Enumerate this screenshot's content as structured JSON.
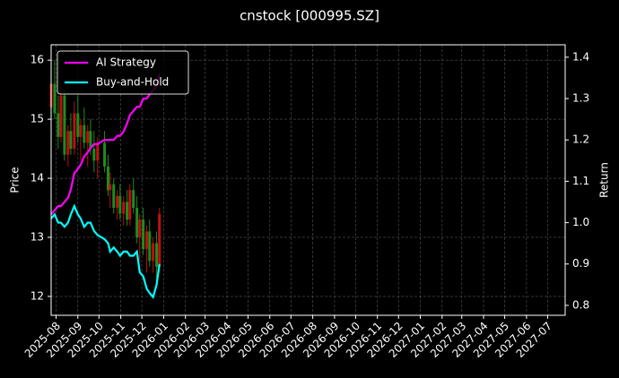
{
  "chart_data": {
    "type": "candlestick",
    "title": "cnstock [000995.SZ]",
    "ylabel": "Price",
    "y2label": "Return",
    "x": [
      "2025-07-25",
      "2025-07-30",
      "2025-08-04",
      "2025-08-08",
      "2025-08-13",
      "2025-08-18",
      "2025-08-22",
      "2025-08-27",
      "2025-09-01",
      "2025-09-05",
      "2025-09-10",
      "2025-09-15",
      "2025-09-19",
      "2025-09-24",
      "2025-09-29",
      "2025-10-09",
      "2025-10-14",
      "2025-10-17",
      "2025-10-22",
      "2025-10-27",
      "2025-10-31",
      "2025-11-05",
      "2025-11-10",
      "2025-11-14",
      "2025-11-19",
      "2025-11-24",
      "2025-11-28",
      "2025-12-03",
      "2025-12-08",
      "2025-12-12",
      "2025-12-17",
      "2025-12-22",
      "2025-12-26"
    ],
    "open": [
      15.2,
      15.6,
      15.1,
      14.7,
      15.4,
      14.4,
      14.8,
      14.5,
      15.1,
      14.7,
      14.9,
      14.6,
      14.8,
      14.5,
      14.3,
      14.6,
      14.2,
      13.8,
      13.9,
      13.5,
      13.7,
      13.4,
      13.6,
      13.3,
      13.8,
      13.5,
      13.0,
      13.3,
      12.8,
      13.1,
      12.6,
      12.9,
      12.5
    ],
    "high": [
      15.9,
      16.0,
      15.4,
      15.6,
      15.5,
      14.9,
      15.1,
      15.3,
      15.4,
      15.0,
      15.2,
      14.9,
      15.0,
      14.8,
      14.7,
      14.8,
      14.4,
      14.1,
      14.0,
      13.8,
      13.9,
      13.7,
      13.8,
      13.9,
      14.0,
      13.7,
      13.4,
      13.5,
      13.2,
      13.3,
      13.0,
      13.1,
      13.5
    ],
    "low": [
      14.8,
      15.0,
      14.5,
      14.6,
      14.3,
      14.2,
      14.4,
      14.4,
      14.6,
      14.3,
      14.5,
      14.2,
      14.4,
      14.1,
      14.0,
      14.1,
      13.7,
      13.5,
      13.4,
      13.3,
      13.3,
      13.2,
      13.2,
      13.2,
      13.4,
      12.9,
      12.6,
      12.7,
      12.4,
      12.5,
      12.4,
      12.3,
      12.4
    ],
    "close": [
      15.6,
      15.1,
      14.7,
      15.4,
      14.4,
      14.8,
      14.5,
      15.1,
      14.7,
      14.9,
      14.6,
      14.8,
      14.5,
      14.3,
      14.6,
      14.2,
      13.8,
      13.9,
      13.5,
      13.7,
      13.4,
      13.6,
      13.3,
      13.8,
      13.5,
      13.0,
      13.3,
      12.8,
      13.1,
      12.6,
      12.9,
      12.5,
      13.4
    ],
    "up_color": "#c01010",
    "down_color": "#1e8c1e",
    "series": [
      {
        "name": "AI Strategy",
        "color": "#ff00ff",
        "axis": "y2",
        "values": [
          1.02,
          1.03,
          1.04,
          1.04,
          1.05,
          1.06,
          1.08,
          1.12,
          1.13,
          1.14,
          1.16,
          1.17,
          1.18,
          1.19,
          1.19,
          1.2,
          1.2,
          1.2,
          1.2,
          1.21,
          1.21,
          1.22,
          1.24,
          1.26,
          1.27,
          1.28,
          1.28,
          1.3,
          1.3,
          1.31,
          1.32,
          1.33,
          1.36
        ]
      },
      {
        "name": "Buy-and-Hold",
        "color": "#00ffff",
        "axis": "y2",
        "values": [
          1.01,
          1.02,
          1.0,
          1.0,
          0.99,
          1.0,
          1.02,
          1.04,
          1.02,
          1.01,
          0.99,
          1.0,
          1.0,
          0.98,
          0.97,
          0.96,
          0.95,
          0.93,
          0.94,
          0.93,
          0.92,
          0.93,
          0.93,
          0.92,
          0.92,
          0.93,
          0.88,
          0.87,
          0.84,
          0.83,
          0.82,
          0.85,
          0.9
        ]
      }
    ],
    "xlim": [
      "2025-07-25",
      "2027-07-26"
    ],
    "xticks": [
      {
        "value": "2025-08-01",
        "label": "2025-08"
      },
      {
        "value": "2025-09-01",
        "label": "2025-09"
      },
      {
        "value": "2025-10-01",
        "label": "2025-10"
      },
      {
        "value": "2025-11-01",
        "label": "2025-11"
      },
      {
        "value": "2025-12-01",
        "label": "2025-12"
      },
      {
        "value": "2026-01-01",
        "label": "2026-01"
      },
      {
        "value": "2026-02-01",
        "label": "2026-02"
      },
      {
        "value": "2026-03-01",
        "label": "2026-03"
      },
      {
        "value": "2026-04-01",
        "label": "2026-04"
      },
      {
        "value": "2026-05-01",
        "label": "2026-05"
      },
      {
        "value": "2026-06-01",
        "label": "2026-06"
      },
      {
        "value": "2026-07-01",
        "label": "2026-07"
      },
      {
        "value": "2026-08-01",
        "label": "2026-08"
      },
      {
        "value": "2026-09-01",
        "label": "2026-09"
      },
      {
        "value": "2026-10-01",
        "label": "2026-10"
      },
      {
        "value": "2026-11-01",
        "label": "2026-11"
      },
      {
        "value": "2026-12-01",
        "label": "2026-12"
      },
      {
        "value": "2027-01-01",
        "label": "2027-01"
      },
      {
        "value": "2027-02-01",
        "label": "2027-02"
      },
      {
        "value": "2027-03-01",
        "label": "2027-03"
      },
      {
        "value": "2027-04-01",
        "label": "2027-04"
      },
      {
        "value": "2027-05-01",
        "label": "2027-05"
      },
      {
        "value": "2027-06-01",
        "label": "2027-06"
      },
      {
        "value": "2027-07-01",
        "label": "2027-07"
      }
    ],
    "ylim": [
      11.68,
      16.26
    ],
    "yticks": [
      12,
      13,
      14,
      15,
      16
    ],
    "y2lim": [
      0.776,
      1.43
    ],
    "y2ticks": [
      {
        "value": 0.8,
        "label": "0.8"
      },
      {
        "value": 0.9,
        "label": "0.9"
      },
      {
        "value": 1.0,
        "label": "1.0"
      },
      {
        "value": 1.1,
        "label": "1.1"
      },
      {
        "value": 1.2,
        "label": "1.2"
      },
      {
        "value": 1.3,
        "label": "1.3"
      },
      {
        "value": 1.4,
        "label": "1.4"
      }
    ],
    "grid": true,
    "legend": "upper left"
  }
}
